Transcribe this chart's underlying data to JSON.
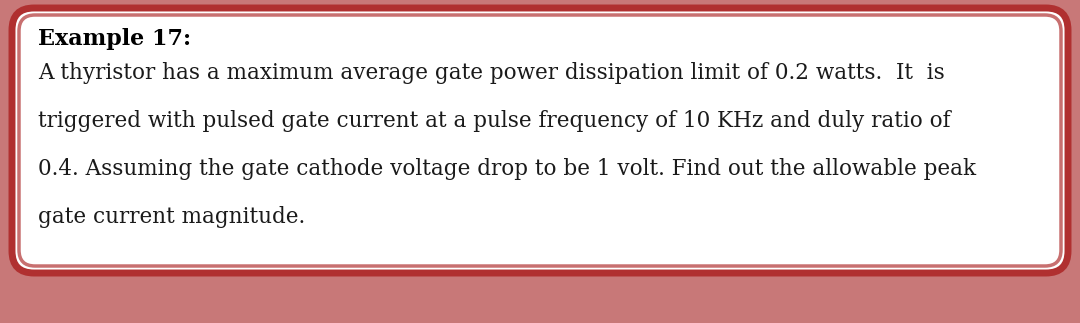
{
  "title": "Example 17:",
  "body_lines": [
    "A thyristor has a maximum average gate power dissipation limit of 0.2 watts.  It  is",
    "triggered with pulsed gate current at a pulse frequency of 10 KHz and duly ratio of",
    "0.4. Assuming the gate cathode voltage drop to be 1 volt. Find out the allowable peak",
    "gate current magnitude."
  ],
  "bg_color": "#ffffff",
  "outer_border_color": "#b03030",
  "inner_border_color": "#c87070",
  "title_color": "#000000",
  "body_color": "#1a1a1a",
  "title_fontsize": 16,
  "body_fontsize": 15.5,
  "fig_bg_color": "#c87878",
  "fig_width": 10.8,
  "fig_height": 3.23,
  "dpi": 100
}
